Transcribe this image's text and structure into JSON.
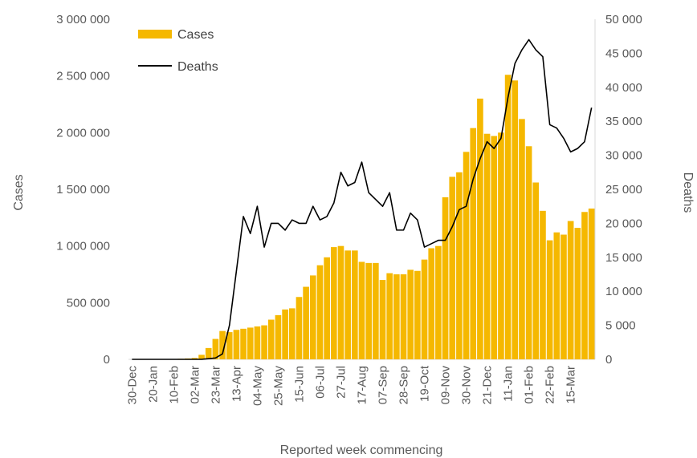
{
  "chart_data": {
    "type": "bar",
    "xlabel": "Reported week commencing",
    "ylabel": "Cases",
    "y2label": "Deaths",
    "ylim": [
      0,
      3000000
    ],
    "y2lim": [
      0,
      50000
    ],
    "y_ticks": [
      "0",
      "500 000",
      "1 000 000",
      "1 500 000",
      "2 000 000",
      "2 500 000",
      "3 000 000"
    ],
    "y2_ticks": [
      "0",
      "5 000",
      "10 000",
      "15 000",
      "20 000",
      "25 000",
      "30 000",
      "35 000",
      "40 000",
      "45 000",
      "50 000"
    ],
    "x_ticks": [
      "30-Dec",
      "20-Jan",
      "10-Feb",
      "02-Mar",
      "23-Mar",
      "13-Apr",
      "04-May",
      "25-May",
      "15-Jun",
      "06-Jul",
      "27-Jul",
      "17-Aug",
      "07-Sep",
      "28-Sep",
      "19-Oct",
      "09-Nov",
      "30-Nov",
      "21-Dec",
      "11-Jan",
      "01-Feb",
      "22-Feb",
      "15-Mar"
    ],
    "x_tick_every": 3,
    "legend_position": "top-left",
    "grid": false,
    "series": [
      {
        "name": "Cases",
        "kind": "bar",
        "axis": "left",
        "color": "#F5B800",
        "values": [
          0,
          0,
          500,
          1000,
          1500,
          2000,
          2500,
          5000,
          8000,
          12000,
          40000,
          100000,
          180000,
          250000,
          240000,
          260000,
          270000,
          280000,
          290000,
          300000,
          350000,
          390000,
          440000,
          450000,
          550000,
          640000,
          740000,
          830000,
          900000,
          990000,
          1000000,
          960000,
          960000,
          860000,
          850000,
          850000,
          700000,
          760000,
          750000,
          750000,
          790000,
          780000,
          880000,
          980000,
          1000000,
          1430000,
          1610000,
          1650000,
          1830000,
          2040000,
          2300000,
          1990000,
          1970000,
          2000000,
          2510000,
          2460000,
          2120000,
          1880000,
          1560000,
          1310000,
          1050000,
          1120000,
          1100000,
          1220000,
          1160000,
          1300000,
          1330000
        ]
      },
      {
        "name": "Deaths",
        "kind": "line",
        "axis": "right",
        "color": "#000000",
        "values": [
          0,
          0,
          0,
          0,
          0,
          0,
          0,
          0,
          0,
          0,
          0,
          100,
          200,
          800,
          5000,
          13000,
          21000,
          18500,
          22500,
          16500,
          20000,
          20000,
          19000,
          20500,
          20000,
          20000,
          22500,
          20500,
          21000,
          23000,
          27500,
          25500,
          26000,
          29000,
          24500,
          23500,
          22500,
          24500,
          19000,
          19000,
          21500,
          20500,
          16500,
          17000,
          17500,
          17500,
          19500,
          22000,
          22500,
          26500,
          29500,
          32000,
          31000,
          32500,
          38500,
          43500,
          45500,
          47000,
          45500,
          44500,
          34500,
          34000,
          32500,
          30500,
          31000,
          32000,
          37000
        ]
      }
    ]
  }
}
